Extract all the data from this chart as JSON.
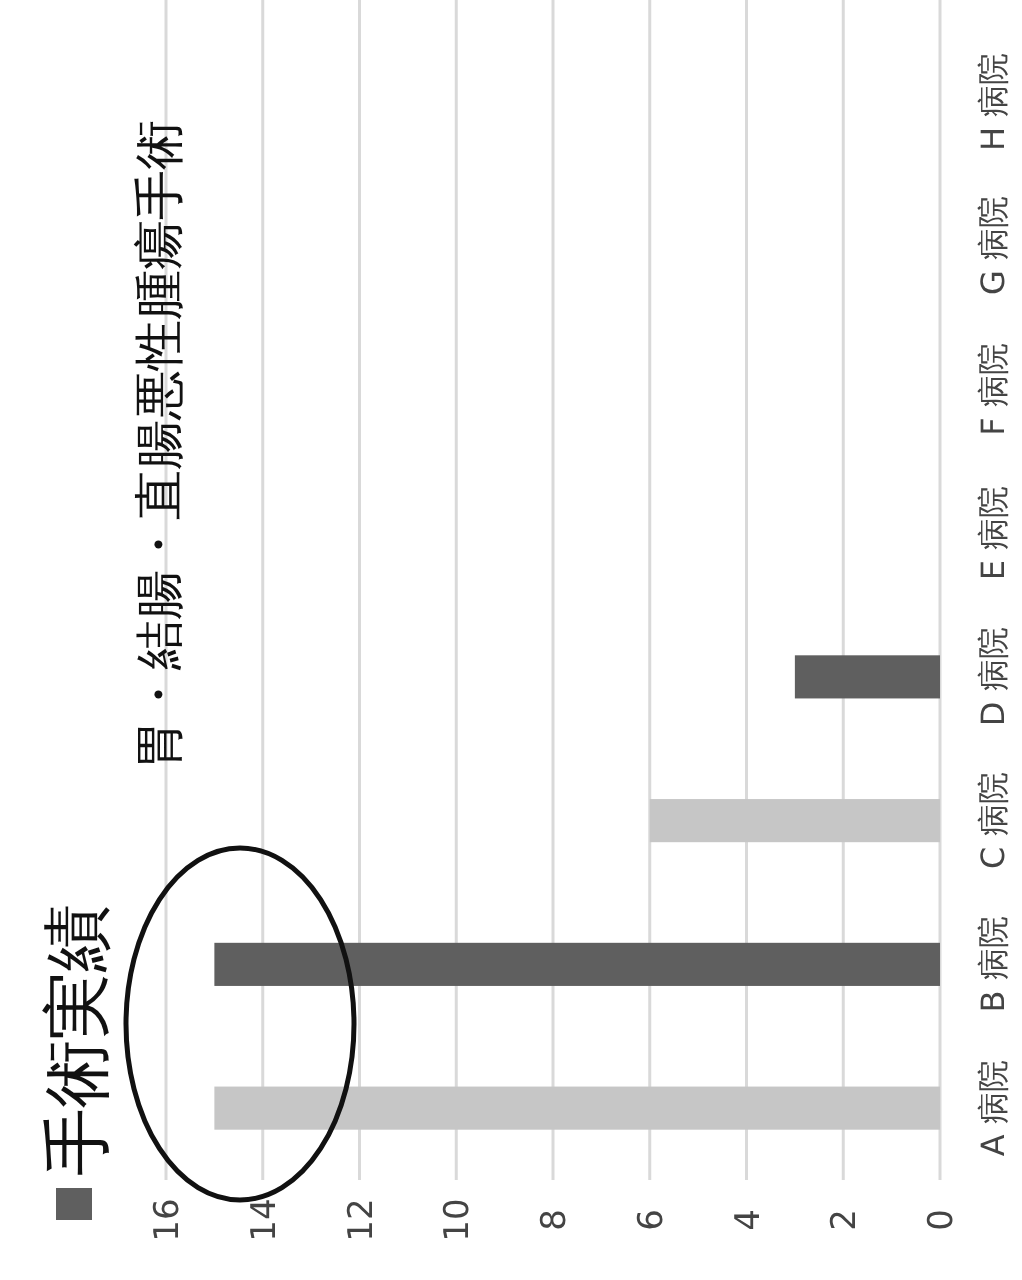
{
  "chart_data": {
    "type": "bar",
    "orientation": "horizontal",
    "title": "手術実績",
    "subtitle": "胃・結腸・直腸悪性腫瘍手術",
    "categories": [
      "H 病院",
      "G 病院",
      "F 病院",
      "E 病院",
      "D 病院",
      "C 病院",
      "B 病院",
      "A 病院"
    ],
    "values": [
      0,
      0,
      0,
      0,
      3,
      6,
      15,
      15
    ],
    "colors": [
      "#5f5f5f",
      "#c6c6c6",
      "#5f5f5f",
      "#c6c6c6",
      "#5f5f5f",
      "#c6c6c6",
      "#5f5f5f",
      "#c6c6c6"
    ],
    "xlim": [
      16,
      0
    ],
    "xticks": [
      16,
      14,
      12,
      10,
      8,
      6,
      4,
      2,
      0
    ],
    "grid": "x"
  }
}
